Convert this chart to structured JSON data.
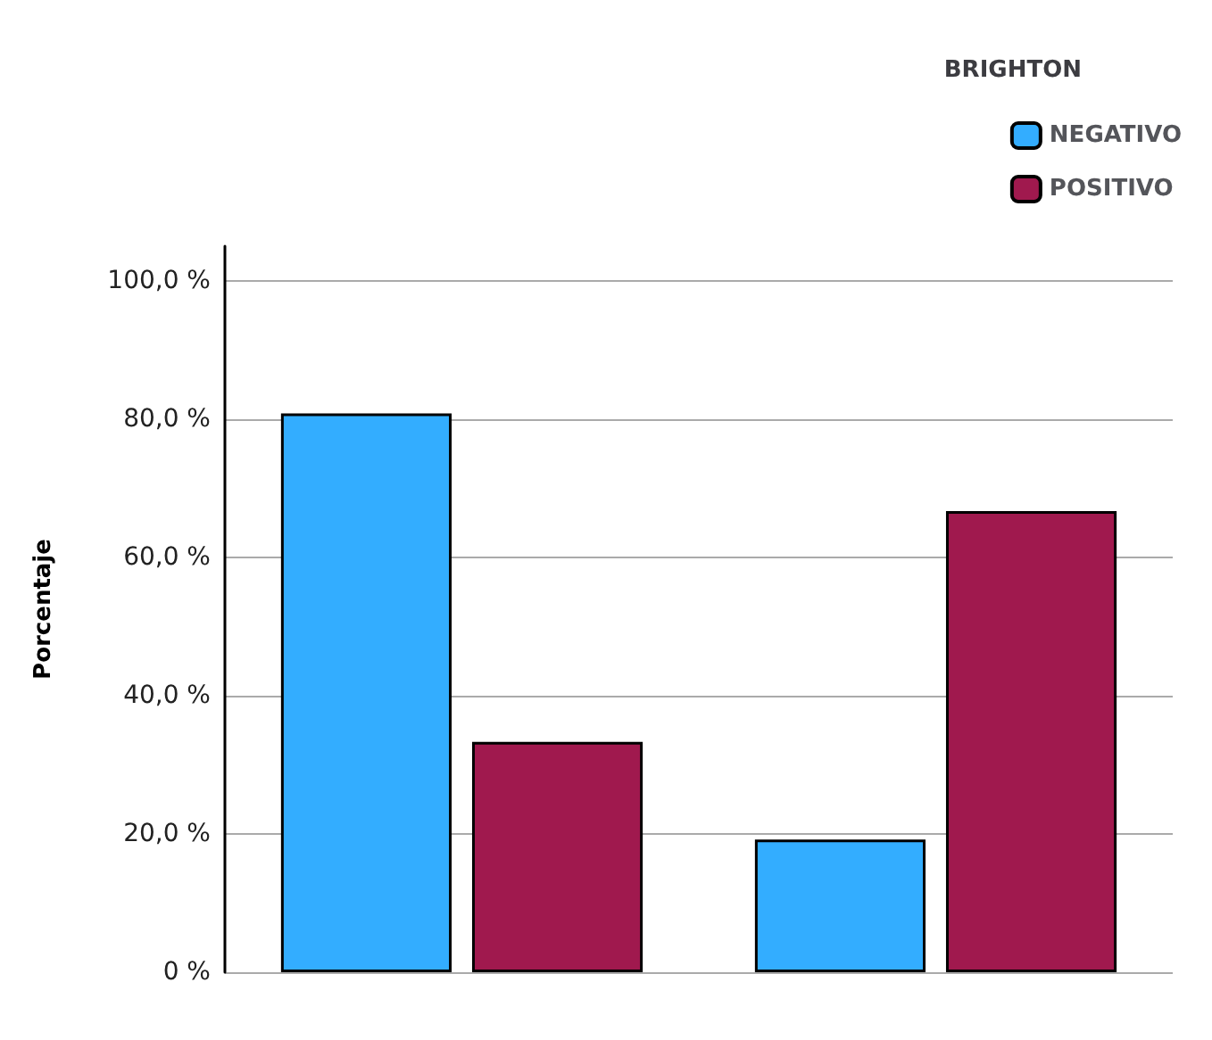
{
  "chart_data": {
    "type": "bar",
    "ylabel": "Porcentaje",
    "legend_title": "BRIGHTON",
    "categories": [
      null,
      null
    ],
    "series": [
      {
        "name": "NEGATIVO",
        "color": "#33adff",
        "values": [
          80.8,
          19.2
        ]
      },
      {
        "name": "POSITIVO",
        "color": "#a0194e",
        "values": [
          33.3,
          66.7
        ]
      }
    ],
    "ylim": [
      0,
      105
    ],
    "yticks": [
      {
        "value": 0,
        "label": "0 %"
      },
      {
        "value": 20,
        "label": "20,0 %"
      },
      {
        "value": 40,
        "label": "40,0 %"
      },
      {
        "value": 60,
        "label": "60,0 %"
      },
      {
        "value": 80,
        "label": "80,0 %"
      },
      {
        "value": 100,
        "label": "100,0 %"
      }
    ],
    "grid": "y",
    "legend": "top right"
  }
}
